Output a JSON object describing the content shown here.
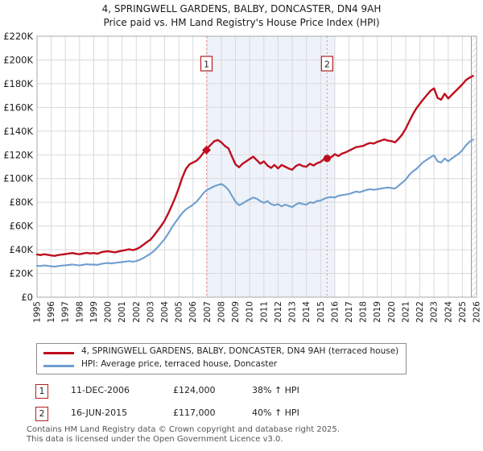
{
  "title": {
    "line1": "4, SPRINGWELL GARDENS, BALBY, DONCASTER, DN4 9AH",
    "line2": "Price paid vs. HM Land Registry's House Price Index (HPI)"
  },
  "legend": {
    "series1": "4, SPRINGWELL GARDENS, BALBY, DONCASTER, DN4 9AH (terraced house)",
    "series2": "HPI: Average price, terraced house, Doncaster"
  },
  "annotations": {
    "items": [
      {
        "num": "1",
        "date": "11-DEC-2006",
        "price": "£124,000",
        "hpi": "38% ↑ HPI"
      },
      {
        "num": "2",
        "date": "16-JUN-2015",
        "price": "£117,000",
        "hpi": "40% ↑ HPI"
      }
    ]
  },
  "footer": {
    "line1": "Contains HM Land Registry data © Crown copyright and database right 2025.",
    "line2": "This data is licensed under the Open Government Licence v3.0."
  },
  "colors": {
    "property": "#bf0d1d",
    "hpi": "#6e9ecf",
    "marker_line": "#e88a8a",
    "marker_box_border": "#b52020",
    "shade": "#eef2fa",
    "grid": "#d9d9d9",
    "frame": "#a8a8a8",
    "hatch": "#bbbbbb",
    "tick_text": "#1a1a1a"
  },
  "chart_data": {
    "type": "line",
    "title": "Price paid vs. HM Land Registry's House Price Index (HPI)",
    "xlim": [
      1995,
      2026
    ],
    "ylim": [
      0,
      220
    ],
    "x0": 1995,
    "dx": 0.25,
    "ytick_step": 20,
    "ytick_labels": [
      "£0",
      "£20K",
      "£40K",
      "£60K",
      "£80K",
      "£100K",
      "£120K",
      "£140K",
      "£160K",
      "£180K",
      "£200K",
      "£220K"
    ],
    "grid": true,
    "legend_position": "bottom",
    "units": "GBP thousands",
    "series": [
      {
        "name": "4, SPRINGWELL GARDENS, BALBY, DONCASTER, DN4 9AH (terraced house)",
        "color": "#bf0d1d",
        "values": [
          36.0,
          35.5,
          36.2,
          35.8,
          35.2,
          34.8,
          35.5,
          35.9,
          36.3,
          36.8,
          37.2,
          36.6,
          36.2,
          36.8,
          37.4,
          36.9,
          37.2,
          36.6,
          37.8,
          38.4,
          38.8,
          38.2,
          37.8,
          38.6,
          39.2,
          39.8,
          40.3,
          39.7,
          40.5,
          42.0,
          44.2,
          46.5,
          48.5,
          52.0,
          56.0,
          60.0,
          64.5,
          70.5,
          77.0,
          84.0,
          92.0,
          101.0,
          108.0,
          112.0,
          113.5,
          115.0,
          118.0,
          122.0,
          125.5,
          128.5,
          131.5,
          132.5,
          130.5,
          127.5,
          125.5,
          118.5,
          112.0,
          109.5,
          112.5,
          114.5,
          116.5,
          118.5,
          115.5,
          112.5,
          114.5,
          111.0,
          109.0,
          111.5,
          108.5,
          111.5,
          110.0,
          108.5,
          107.5,
          110.5,
          112.0,
          110.5,
          110.0,
          112.5,
          111.0,
          113.0,
          114.0,
          116.5,
          117.5,
          118.0,
          120.5,
          119.0,
          121.0,
          122.0,
          123.5,
          125.0,
          126.5,
          127.0,
          127.5,
          129.0,
          130.0,
          129.5,
          131.0,
          132.0,
          133.0,
          132.0,
          131.5,
          130.5,
          133.5,
          137.0,
          142.0,
          148.0,
          154.0,
          159.0,
          163.0,
          167.0,
          170.5,
          174.0,
          176.0,
          168.0,
          166.5,
          171.5,
          167.5,
          170.5,
          173.5,
          176.5,
          179.5,
          183.0,
          185.0,
          186.5
        ]
      },
      {
        "name": "HPI: Average price, terraced house, Doncaster",
        "color": "#6e9ecf",
        "values": [
          26.5,
          26.2,
          26.8,
          26.4,
          26.0,
          25.8,
          26.3,
          26.6,
          26.9,
          27.2,
          27.6,
          27.1,
          26.8,
          27.3,
          27.8,
          27.4,
          27.6,
          27.2,
          28.0,
          28.5,
          28.8,
          28.4,
          28.9,
          29.3,
          29.6,
          30.0,
          30.4,
          29.9,
          30.5,
          31.5,
          33.0,
          34.8,
          36.5,
          39.0,
          42.0,
          45.5,
          49.0,
          53.5,
          58.5,
          63.0,
          67.0,
          71.0,
          74.0,
          76.0,
          78.0,
          80.5,
          84.0,
          88.0,
          90.5,
          92.0,
          93.5,
          94.5,
          95.5,
          93.5,
          90.5,
          85.5,
          80.5,
          77.5,
          79.0,
          81.0,
          82.5,
          84.0,
          83.0,
          81.0,
          79.5,
          81.0,
          78.5,
          77.5,
          78.5,
          76.5,
          78.0,
          77.0,
          76.0,
          78.0,
          79.5,
          78.5,
          78.0,
          80.0,
          79.5,
          81.0,
          81.5,
          83.0,
          84.0,
          84.5,
          84.0,
          85.5,
          86.0,
          86.5,
          87.0,
          88.0,
          89.0,
          88.5,
          89.5,
          90.5,
          91.0,
          90.5,
          91.0,
          91.5,
          92.0,
          92.5,
          92.0,
          91.5,
          94.0,
          96.5,
          99.0,
          103.0,
          106.0,
          108.0,
          111.0,
          114.0,
          116.0,
          118.0,
          119.5,
          114.5,
          113.5,
          117.0,
          114.5,
          117.0,
          119.0,
          121.0,
          124.0,
          128.0,
          131.0,
          133.0
        ]
      }
    ],
    "markers": [
      {
        "label": "1",
        "x": 2006.95,
        "y": 124,
        "shape": "diamond"
      },
      {
        "label": "2",
        "x": 2015.46,
        "y": 117,
        "shape": "circle"
      }
    ],
    "shaded_region": {
      "x1": 2007.0,
      "x2": 2016.0
    },
    "hatch_region": {
      "x1": 2025.63,
      "x2": 2026.0
    }
  }
}
